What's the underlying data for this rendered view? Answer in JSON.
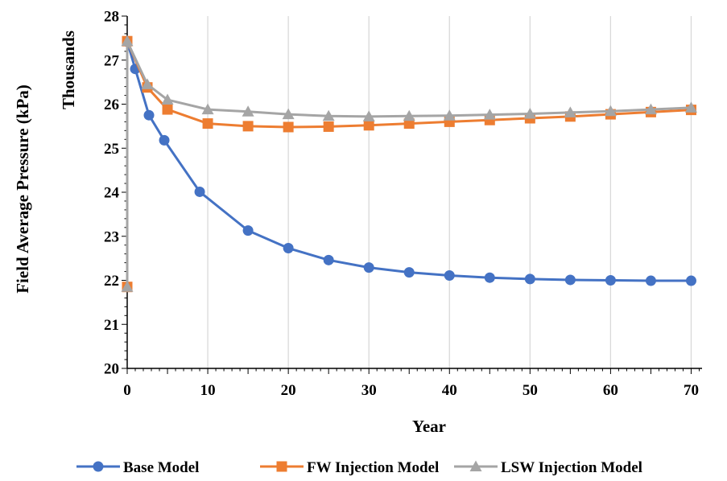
{
  "chart_data": {
    "type": "line",
    "title": "",
    "xlabel": "Year",
    "ylabel": "Field Average Pressure (kPa)",
    "y_unit_label": "Thousands",
    "xlim": [
      0,
      75
    ],
    "ylim": [
      20,
      28
    ],
    "x_ticks": [
      0,
      10,
      20,
      30,
      40,
      50,
      60,
      70
    ],
    "y_ticks": [
      20,
      21,
      22,
      23,
      24,
      25,
      26,
      27,
      28
    ],
    "grid": "vertical",
    "legend_position": "bottom",
    "series": [
      {
        "name": "Base Model",
        "color": "#4472C4",
        "marker": "circle",
        "x": [
          0,
          0,
          1,
          2.7,
          4.6,
          9,
          15,
          20,
          25,
          30,
          35,
          40,
          45,
          50,
          55,
          60,
          65,
          70
        ],
        "y": [
          21.85,
          27.42,
          26.8,
          25.75,
          25.18,
          24.01,
          23.13,
          22.73,
          22.46,
          22.29,
          22.18,
          22.11,
          22.06,
          22.03,
          22.01,
          22.0,
          21.99,
          21.99
        ]
      },
      {
        "name": "FW Injection Model",
        "color": "#ED7D31",
        "marker": "square",
        "x": [
          0,
          0,
          2.5,
          5,
          10,
          15,
          20,
          25,
          30,
          35,
          40,
          45,
          50,
          55,
          60,
          65,
          70
        ],
        "y": [
          21.85,
          27.43,
          26.38,
          25.88,
          25.56,
          25.5,
          25.48,
          25.49,
          25.52,
          25.56,
          25.6,
          25.64,
          25.68,
          25.72,
          25.77,
          25.82,
          25.87
        ]
      },
      {
        "name": "LSW Injection Model",
        "color": "#A5A5A5",
        "marker": "triangle",
        "x": [
          0,
          0,
          2.5,
          5,
          10,
          15,
          20,
          25,
          30,
          35,
          40,
          45,
          50,
          55,
          60,
          65,
          70
        ],
        "y": [
          21.85,
          27.43,
          26.45,
          26.1,
          25.88,
          25.83,
          25.77,
          25.73,
          25.72,
          25.73,
          25.74,
          25.76,
          25.78,
          25.81,
          25.84,
          25.88,
          25.92
        ]
      }
    ]
  }
}
